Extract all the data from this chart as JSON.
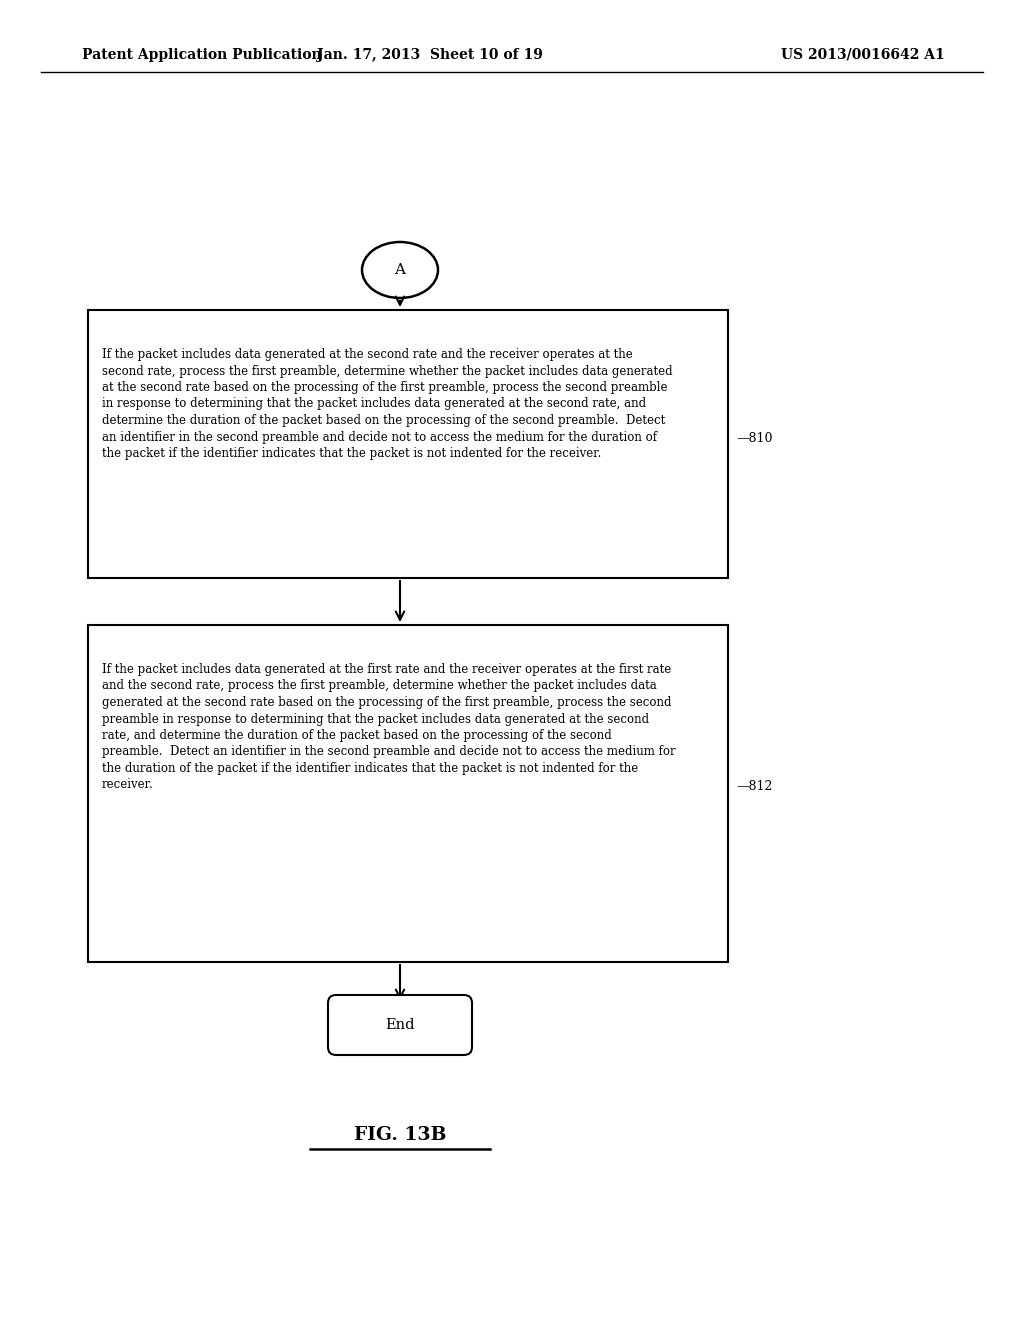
{
  "header_left": "Patent Application Publication",
  "header_middle": "Jan. 17, 2013  Sheet 10 of 19",
  "header_right": "US 2013/0016642 A1",
  "connector_label": "A",
  "box1_label": "810",
  "box1_text": "If the packet includes data generated at the second rate and the receiver operates at the\nsecond rate, process the first preamble, determine whether the packet includes data generated\nat the second rate based on the processing of the first preamble, process the second preamble\nin response to determining that the packet includes data generated at the second rate, and\ndetermine the duration of the packet based on the processing of the second preamble.  Detect\nan identifier in the second preamble and decide not to access the medium for the duration of\nthe packet if the identifier indicates that the packet is not indented for the receiver.",
  "box2_label": "812",
  "box2_text": "If the packet includes data generated at the first rate and the receiver operates at the first rate\nand the second rate, process the first preamble, determine whether the packet includes data\ngenerated at the second rate based on the processing of the first preamble, process the second\npreamble in response to determining that the packet includes data generated at the second\nrate, and determine the duration of the packet based on the processing of the second\npreamble.  Detect an identifier in the second preamble and decide not to access the medium for\nthe duration of the packet if the identifier indicates that the packet is not indented for the\nreceiver.",
  "end_label": "End",
  "figure_label": "FIG. 13B",
  "bg_color": "#ffffff",
  "box_edge_color": "#000000",
  "text_color": "#000000"
}
